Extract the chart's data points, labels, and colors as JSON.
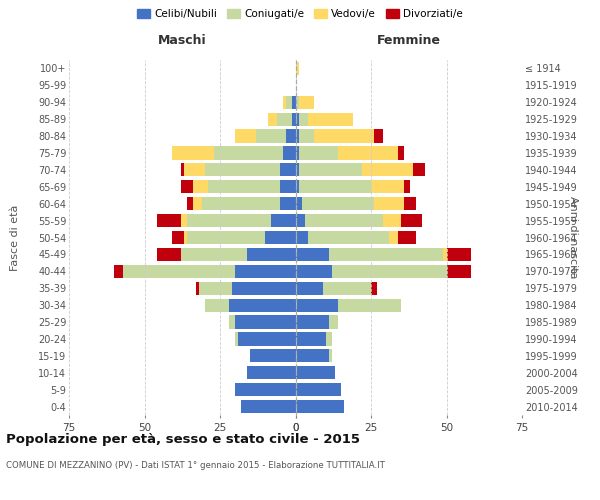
{
  "age_groups": [
    "0-4",
    "5-9",
    "10-14",
    "15-19",
    "20-24",
    "25-29",
    "30-34",
    "35-39",
    "40-44",
    "45-49",
    "50-54",
    "55-59",
    "60-64",
    "65-69",
    "70-74",
    "75-79",
    "80-84",
    "85-89",
    "90-94",
    "95-99",
    "100+"
  ],
  "birth_years": [
    "2010-2014",
    "2005-2009",
    "2000-2004",
    "1995-1999",
    "1990-1994",
    "1985-1989",
    "1980-1984",
    "1975-1979",
    "1970-1974",
    "1965-1969",
    "1960-1964",
    "1955-1959",
    "1950-1954",
    "1945-1949",
    "1940-1944",
    "1935-1939",
    "1930-1934",
    "1925-1929",
    "1920-1924",
    "1915-1919",
    "≤ 1914"
  ],
  "maschi_celibe": [
    18,
    20,
    16,
    15,
    19,
    20,
    22,
    21,
    20,
    16,
    10,
    8,
    5,
    5,
    5,
    4,
    3,
    1,
    1,
    0,
    0
  ],
  "maschi_coniugato": [
    0,
    0,
    0,
    0,
    1,
    2,
    8,
    11,
    37,
    22,
    26,
    28,
    26,
    24,
    25,
    23,
    10,
    5,
    2,
    0,
    0
  ],
  "maschi_vedovo": [
    0,
    0,
    0,
    0,
    0,
    0,
    0,
    0,
    0,
    0,
    1,
    2,
    3,
    5,
    7,
    14,
    7,
    3,
    1,
    0,
    0
  ],
  "maschi_divorziato": [
    0,
    0,
    0,
    0,
    0,
    0,
    0,
    1,
    3,
    8,
    4,
    8,
    2,
    4,
    1,
    0,
    0,
    0,
    0,
    0,
    0
  ],
  "femmine_celibe": [
    16,
    15,
    13,
    11,
    10,
    11,
    14,
    9,
    12,
    11,
    4,
    3,
    2,
    1,
    1,
    1,
    1,
    1,
    0,
    0,
    0
  ],
  "femmine_coniugata": [
    0,
    0,
    0,
    1,
    2,
    3,
    21,
    16,
    38,
    38,
    27,
    26,
    24,
    24,
    21,
    13,
    5,
    3,
    1,
    0,
    0
  ],
  "femmine_vedova": [
    0,
    0,
    0,
    0,
    0,
    0,
    0,
    0,
    0,
    1,
    3,
    6,
    10,
    11,
    17,
    20,
    20,
    15,
    5,
    0,
    1
  ],
  "femmine_divorziata": [
    0,
    0,
    0,
    0,
    0,
    0,
    0,
    2,
    8,
    8,
    6,
    7,
    4,
    2,
    4,
    2,
    3,
    0,
    0,
    0,
    0
  ],
  "color_celibe": "#4472c4",
  "color_coniugato": "#c5d9a0",
  "color_vedovo": "#ffd966",
  "color_divorziato": "#c0000c",
  "xlim": 75,
  "title": "Popolazione per età, sesso e stato civile - 2015",
  "subtitle": "COMUNE DI MEZZANINO (PV) - Dati ISTAT 1° gennaio 2015 - Elaborazione TUTTITALIA.IT",
  "label_fasce": "Fasce di età",
  "label_anni": "Anni di nascita",
  "label_maschi": "Maschi",
  "label_femmine": "Femmine",
  "legend_labels": [
    "Celibi/Nubili",
    "Coniugati/e",
    "Vedovi/e",
    "Divorziati/e"
  ],
  "bg_color": "#ffffff",
  "grid_color": "#cccccc",
  "bar_height": 0.78,
  "xticks_maschi": [
    -75,
    -50,
    -25,
    0
  ],
  "xticks_femmine": [
    0,
    25,
    50,
    75
  ],
  "xtick_labels_maschi": [
    "75",
    "50",
    "25",
    "0"
  ],
  "xtick_labels_femmine": [
    "0",
    "25",
    "50",
    "75"
  ]
}
